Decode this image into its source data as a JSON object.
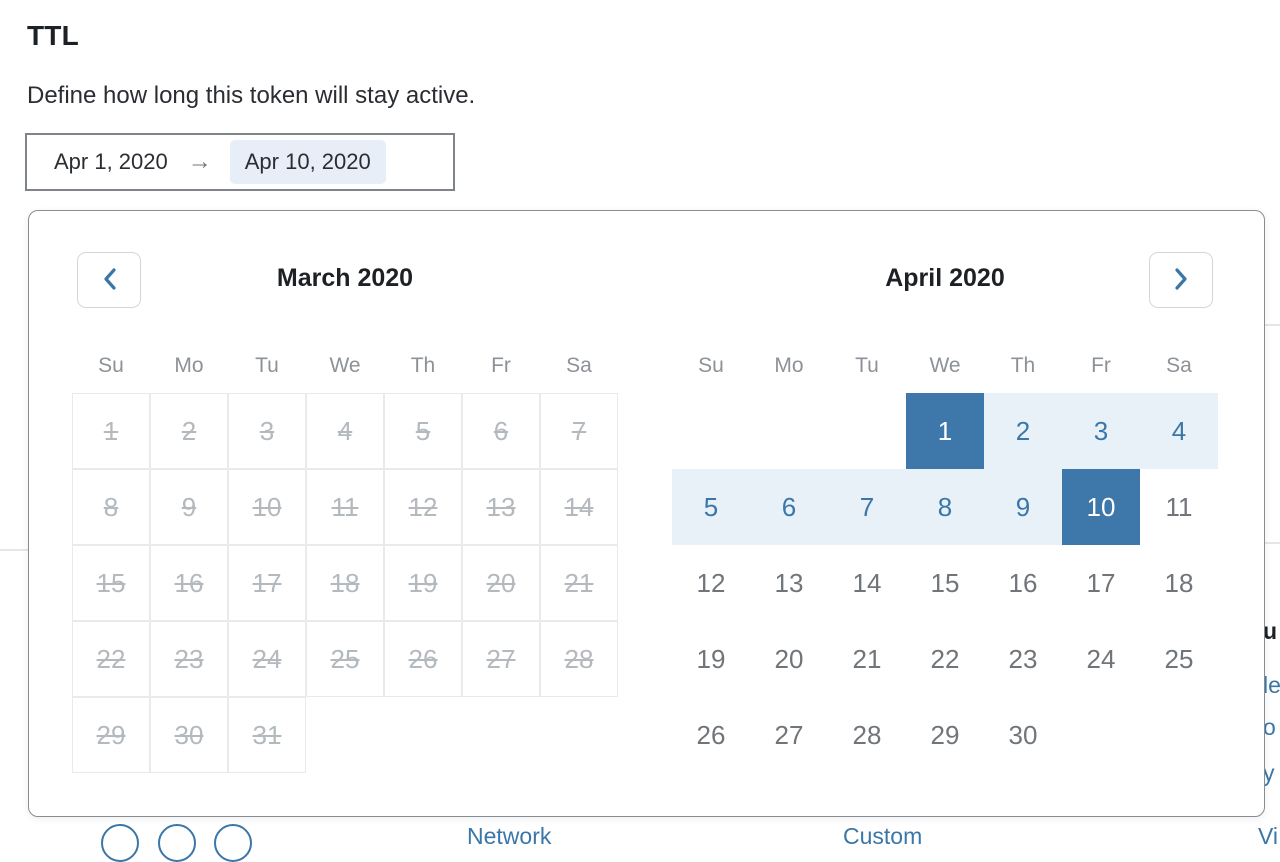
{
  "page": {
    "title": "TTL",
    "description": "Define how long this token will stay active."
  },
  "date_input": {
    "start_value": "Apr 1, 2020",
    "arrow": "→",
    "end_value": "Apr 10, 2020"
  },
  "calendar": {
    "weekdays": [
      "Su",
      "Mo",
      "Tu",
      "We",
      "Th",
      "Fr",
      "Sa"
    ],
    "months": [
      {
        "title": "March 2020",
        "disabled": true,
        "bordered": true,
        "weeks": [
          [
            1,
            2,
            3,
            4,
            5,
            6,
            7
          ],
          [
            8,
            9,
            10,
            11,
            12,
            13,
            14
          ],
          [
            15,
            16,
            17,
            18,
            19,
            20,
            21
          ],
          [
            22,
            23,
            24,
            25,
            26,
            27,
            28
          ],
          [
            29,
            30,
            31,
            null,
            null,
            null,
            null
          ]
        ]
      },
      {
        "title": "April 2020",
        "disabled": false,
        "bordered": false,
        "range": {
          "start": 1,
          "end": 10
        },
        "weeks": [
          [
            null,
            null,
            null,
            1,
            2,
            3,
            4
          ],
          [
            5,
            6,
            7,
            8,
            9,
            10,
            11
          ],
          [
            12,
            13,
            14,
            15,
            16,
            17,
            18
          ],
          [
            19,
            20,
            21,
            22,
            23,
            24,
            25
          ],
          [
            26,
            27,
            28,
            29,
            30,
            null,
            null
          ]
        ]
      }
    ],
    "icons": {
      "prev": "chevron-left-icon",
      "next": "chevron-right-icon"
    }
  },
  "colors": {
    "accent_blue": "#3a77a8",
    "selected_bg": "#3e77a9",
    "range_bg": "#e9f1f8",
    "disabled_gray": "#b4b9be",
    "input_highlight_bg": "#e7eef7"
  },
  "background_fragments": {
    "edge_f1": "u",
    "edge_f2": "le",
    "edge_f3": "o",
    "edge_f4": "y",
    "bottom_link1": "Network",
    "bottom_link2": "Custom",
    "bottom_link3": "Vi"
  }
}
